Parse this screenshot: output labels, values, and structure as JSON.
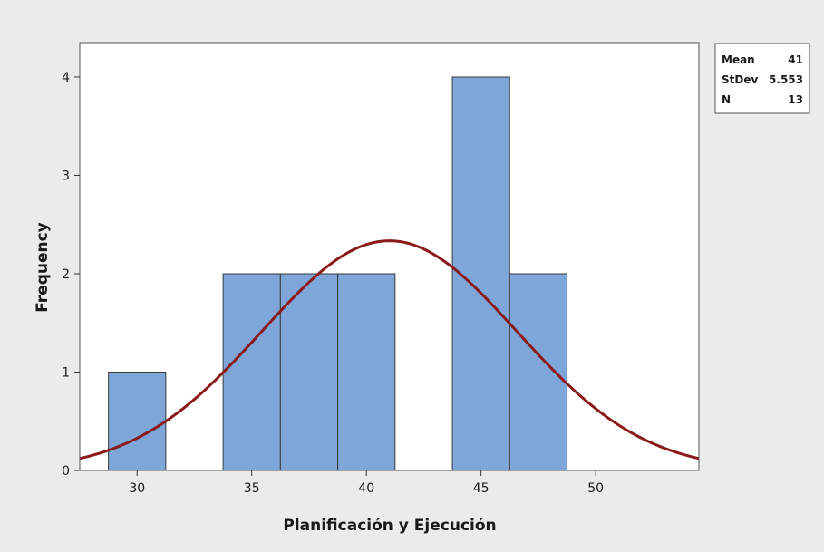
{
  "chart_data": {
    "type": "bar",
    "subtype": "histogram-with-normal-fit",
    "title": "",
    "xlabel": "Planificación y Ejecución",
    "ylabel": "Frequency",
    "xlim": [
      27.5,
      54.5
    ],
    "ylim": [
      0,
      4.35
    ],
    "x_ticks": [
      30,
      35,
      40,
      45,
      50
    ],
    "y_ticks": [
      0,
      1,
      2,
      3,
      4
    ],
    "bin_width": 2.5,
    "bins": [
      {
        "start": 28.75,
        "end": 31.25,
        "count": 1
      },
      {
        "start": 31.25,
        "end": 33.75,
        "count": 0
      },
      {
        "start": 33.75,
        "end": 36.25,
        "count": 2
      },
      {
        "start": 36.25,
        "end": 38.75,
        "count": 2
      },
      {
        "start": 38.75,
        "end": 41.25,
        "count": 2
      },
      {
        "start": 41.25,
        "end": 43.75,
        "count": 0
      },
      {
        "start": 43.75,
        "end": 46.25,
        "count": 4
      },
      {
        "start": 46.25,
        "end": 48.75,
        "count": 2
      }
    ],
    "fit": {
      "distribution": "normal",
      "mean": 41,
      "stdev": 5.553,
      "n": 13
    },
    "legend": {
      "position": "right-top",
      "rows": [
        {
          "label": "Mean",
          "value": "41"
        },
        {
          "label": "StDev",
          "value": "5.553"
        },
        {
          "label": "N",
          "value": "13"
        }
      ]
    },
    "grid": false,
    "colors": {
      "outer_background": "#ebebeb",
      "plot_background": "#ffffff",
      "bar_fill": "#7ea6d8",
      "bar_edge": "#3a3a3a",
      "fit_line": "#8b1a1a"
    }
  }
}
